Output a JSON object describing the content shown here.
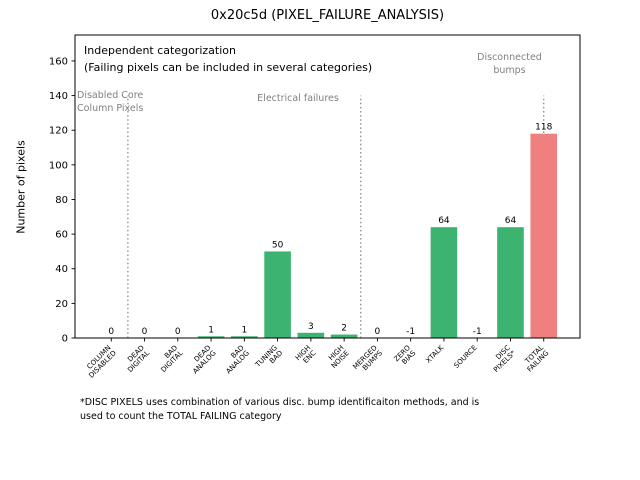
{
  "title": "0x20c5d (PIXEL_FAILURE_ANALYSIS)",
  "ylabel": "Number of pixels",
  "annotations": {
    "independent": "Independent categorization\n(Failing pixels can be included in several categories)",
    "disabled_core": "Disabled Core\nColumn Pixels",
    "electrical": "Electrical failures",
    "disconnected": "Disconnected\nbumps"
  },
  "footnote": "*DISC PIXELS uses combination of various disc. bump identificaiton methods, and is\nused to count the TOTAL FAILING category",
  "chart_data": {
    "type": "bar",
    "title": "0x20c5d (PIXEL_FAILURE_ANALYSIS)",
    "xlabel": "",
    "ylabel": "Number of pixels",
    "categories": [
      "COLUMN\nDISABLED",
      "DEAD\nDIGITAL",
      "BAD\nDIGITAL",
      "DEAD\nANALOG",
      "BAD\nANALOG",
      "TUNING\nBAD",
      "HIGH\nENC",
      "HIGH\nNOISE",
      "MERGED\nBUMPS",
      "ZERO\nBIAS",
      "XTALK",
      "SOURCE",
      "DISC\nPIXELS*",
      "TOTAL\nFAILING"
    ],
    "values": [
      0,
      0,
      0,
      1,
      1,
      50,
      3,
      2,
      0,
      -1,
      64,
      -1,
      64,
      118
    ],
    "highlight_index": 13,
    "bar_color_default": "#3CB371",
    "bar_color_highlight": "#F08080",
    "ylim": [
      0,
      175
    ],
    "yticks": [
      0,
      20,
      40,
      60,
      80,
      100,
      120,
      140,
      160
    ],
    "grid": false,
    "separators": {
      "x_positions": [
        0.5,
        7.5,
        13.0
      ],
      "top_value": 140,
      "color": "#808080"
    },
    "section_label_color": "#808080",
    "axis_color": "#000000"
  }
}
